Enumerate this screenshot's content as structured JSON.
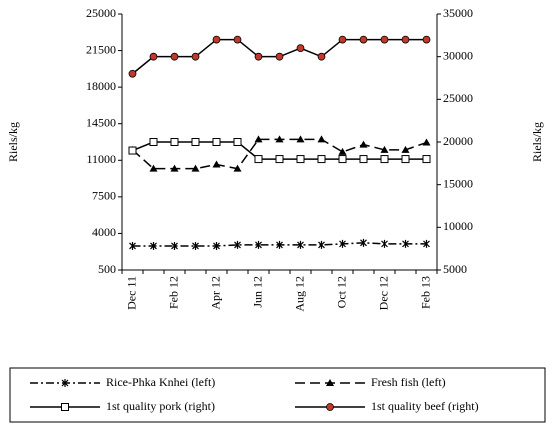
{
  "chart_data": {
    "type": "line",
    "y_label": "Riels/kg",
    "y2_label": "Riels/kg",
    "categories": [
      "Dec 11",
      null,
      "Feb 12",
      null,
      "Apr 12",
      null,
      "Jun 12",
      null,
      "Aug 12",
      null,
      "Oct 12",
      null,
      "Dec 12",
      null,
      "Feb 13"
    ],
    "ylim": [
      500,
      25000
    ],
    "yticks": [
      500,
      4000,
      7500,
      11000,
      14500,
      18000,
      21500,
      25000
    ],
    "y2lim": [
      5000,
      35000
    ],
    "y2ticks": [
      5000,
      10000,
      15000,
      20000,
      25000,
      30000,
      35000
    ],
    "series": [
      {
        "name": "Rice-Phka Knhei (left)",
        "color": "#000000",
        "dash": "8 3 2 3",
        "marker": "star",
        "values": [
          2800,
          2800,
          2800,
          2800,
          2800,
          2900,
          2900,
          2900,
          2900,
          2900,
          3000,
          3100,
          3000,
          3000,
          3000
        ]
      },
      {
        "name": "Fresh fish (left)",
        "color": "#000000",
        "dash": "10 5",
        "marker": "triangle",
        "values": [
          12000,
          10200,
          10200,
          10200,
          10600,
          10200,
          13000,
          13000,
          13000,
          13000,
          11800,
          12500,
          12000,
          12000,
          12700
        ]
      },
      {
        "name": "1st quality pork (right)",
        "color": "#000000",
        "dash": "none",
        "marker": "square",
        "axis": "y2",
        "values": [
          19000,
          20000,
          20000,
          20000,
          20000,
          20000,
          18000,
          18000,
          18000,
          18000,
          18000,
          18000,
          18000,
          18000,
          18000
        ]
      },
      {
        "name": "1st quality beef (right)",
        "color": "#000000",
        "marker_color": "#c0392b",
        "dash": "none",
        "marker": "circle",
        "axis": "y2",
        "values": [
          28000,
          30000,
          30000,
          30000,
          32000,
          32000,
          30000,
          30000,
          31000,
          30000,
          32000,
          32000,
          32000,
          32000,
          32000
        ]
      }
    ]
  }
}
